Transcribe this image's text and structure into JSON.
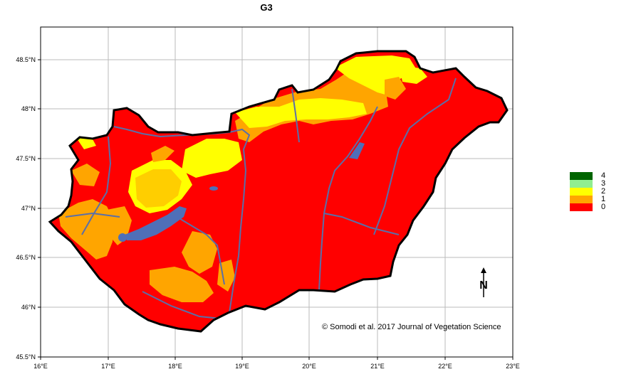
{
  "title": "G3",
  "credit": "© Somodi et al. 2017 Journal of Vegetation Science",
  "north_label": "N",
  "axes": {
    "x_ticks": [
      "16°E",
      "17°E",
      "18°E",
      "19°E",
      "20°E",
      "21°E",
      "22°E",
      "23°E"
    ],
    "y_ticks": [
      "45.5°N",
      "46°N",
      "46.5°N",
      "47°N",
      "47.5°N",
      "48°N",
      "48.5°N"
    ],
    "grid": true
  },
  "legend": [
    {
      "label": "4",
      "color": "#006400"
    },
    {
      "label": "3",
      "color": "#90ee90"
    },
    {
      "label": "2",
      "color": "#ffff00"
    },
    {
      "label": "1",
      "color": "#ffa500"
    },
    {
      "label": "0",
      "color": "#ff0000"
    }
  ],
  "colors": {
    "background_class": "#ff0000",
    "lake": "#4f6fb8",
    "river": "#5a6fa8",
    "border": "#000000",
    "grid": "#bbbbbb"
  }
}
